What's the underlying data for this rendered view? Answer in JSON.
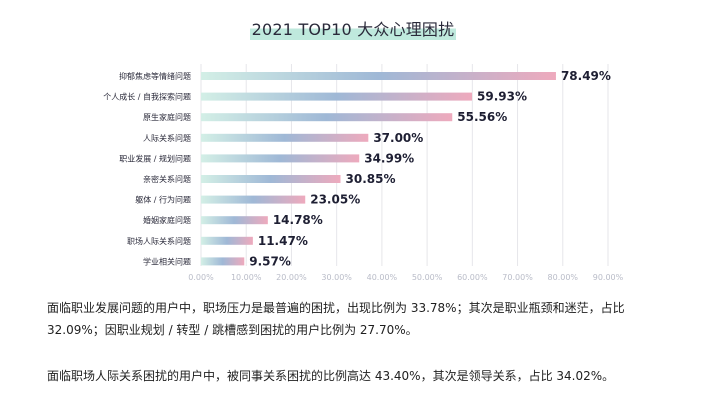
{
  "chart_data": {
    "type": "bar",
    "orientation": "horizontal",
    "title": "2021 TOP10 大众心理困扰",
    "categories": [
      "抑郁焦虑等情绪问题",
      "个人成长 / 自我探索问题",
      "原生家庭问题",
      "人际关系问题",
      "职业发展 / 规划问题",
      "亲密关系问题",
      "躯体 / 行为问题",
      "婚姻家庭问题",
      "职场人际关系问题",
      "学业相关问题"
    ],
    "values": [
      78.49,
      59.93,
      55.56,
      37.0,
      34.99,
      30.85,
      23.05,
      14.78,
      11.47,
      9.57
    ],
    "value_labels": [
      "78.49%",
      "59.93%",
      "55.56%",
      "37.00%",
      "34.99%",
      "30.85%",
      "23.05%",
      "14.78%",
      "11.47%",
      "9.57%"
    ],
    "x_ticks": [
      "0.00%",
      "10.00%",
      "20.00%",
      "30.00%",
      "40.00%",
      "50.00%",
      "60.00%",
      "70.00%",
      "80.00%",
      "90.00%"
    ],
    "xlim": [
      0,
      90
    ],
    "grid": true,
    "colors": {
      "gradient_start": "#d3efe6",
      "gradient_mid": "#9fb8d6",
      "gradient_end": "#eeaabd",
      "grid": "#e6e6ea",
      "tick": "#b9bcc8",
      "label": "#2a2a3a"
    }
  },
  "text": {
    "para1": "面临职业发展问题的用户中，职场压力是最普遍的困扰，出现比例为 33.78%；其次是职业瓶颈和迷茫，占比 32.09%；因职业规划 / 转型 / 跳槽感到困扰的用户比例为 27.70%。",
    "para2": "面临职场人际关系困扰的用户中，被同事关系困扰的比例高达 43.40%，其次是领导关系，占比 34.02%。"
  }
}
